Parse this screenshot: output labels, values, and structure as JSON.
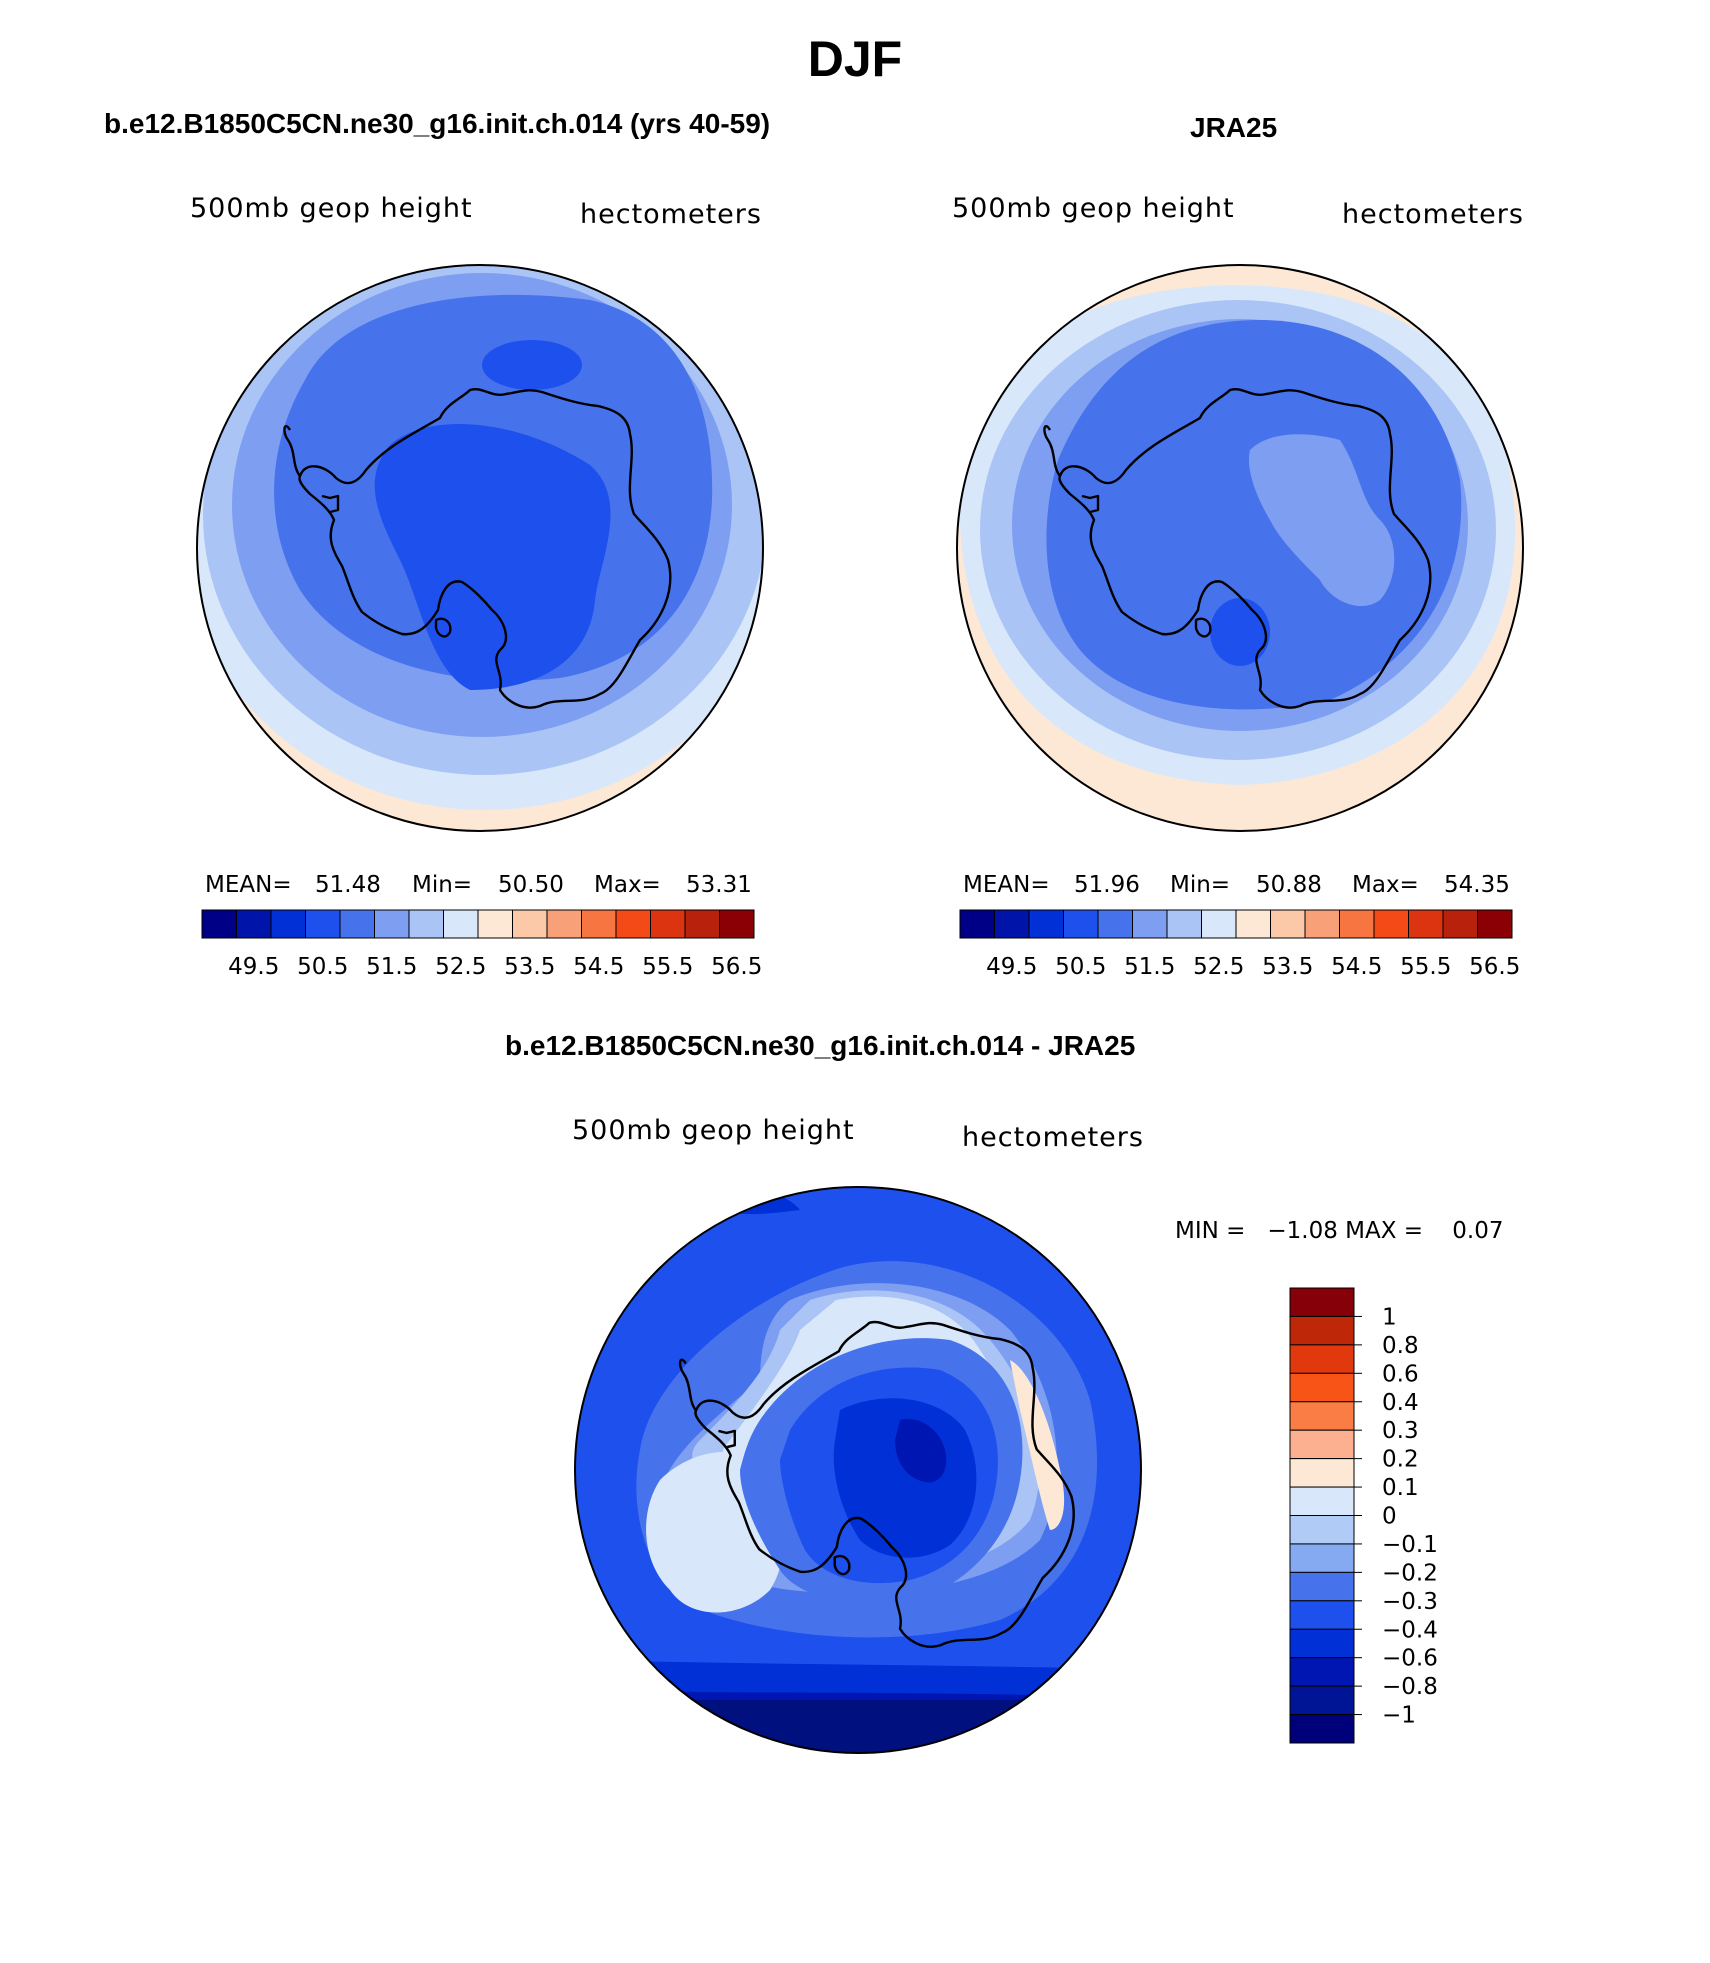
{
  "title": "DJF",
  "panels": [
    {
      "id": "model",
      "title": "b.e12.B1850C5CN.ne30_g16.init.ch.014 (yrs 40-59)",
      "left_label": "500mb geop height",
      "right_label": "hectometers",
      "stats": {
        "mean_label": "MEAN=",
        "mean": "51.48",
        "min_label": "Min=",
        "min": "50.50",
        "max_label": "Max=",
        "max": "53.31"
      }
    },
    {
      "id": "obs",
      "title": "JRA25",
      "left_label": "500mb geop height",
      "right_label": "hectometers",
      "stats": {
        "mean_label": "MEAN=",
        "mean": "51.96",
        "min_label": "Min=",
        "min": "50.88",
        "max_label": "Max=",
        "max": "54.35"
      }
    },
    {
      "id": "diff",
      "title": "b.e12.B1850C5CN.ne30_g16.init.ch.014 - JRA25",
      "left_label": "500mb geop height",
      "right_label": "hectometers",
      "minmax_text": "MIN =   −1.08 MAX =    0.07"
    }
  ],
  "colorbar_top": {
    "colors": [
      "#000086",
      "#0014aa",
      "#0030d6",
      "#1e50ee",
      "#4672ec",
      "#7e9ef2",
      "#aac4f6",
      "#d8e8fa",
      "#fde8d6",
      "#fbc8a8",
      "#f8a077",
      "#f67540",
      "#f44a18",
      "#dc3410",
      "#b8220c",
      "#8a0004"
    ],
    "labels": [
      "49.5",
      "50.5",
      "51.5",
      "52.5",
      "53.5",
      "54.5",
      "55.5",
      "56.5"
    ]
  },
  "colorbar_diff": {
    "colors": [
      "#86000a",
      "#be2808",
      "#e2380e",
      "#f85418",
      "#fa7d45",
      "#fcb090",
      "#fde8d6",
      "#d8e8fa",
      "#b0ccf6",
      "#86aaf2",
      "#4672ec",
      "#1e50ee",
      "#0030d6",
      "#0016b2",
      "#001496",
      "#00007a"
    ],
    "labels": [
      "1",
      "0.8",
      "0.6",
      "0.4",
      "0.3",
      "0.2",
      "0.1",
      "0",
      "−0.1",
      "−0.2",
      "−0.3",
      "−0.4",
      "−0.6",
      "−0.8",
      "−1"
    ]
  },
  "map_colors": {
    "m_peach": "#fde8d6",
    "m_pale": "#d8e8fa",
    "m_light": "#aac4f6",
    "m_mid": "#7e9ef2",
    "m_blue": "#4672ec",
    "m_deep": "#1e50ee",
    "d_deepest": "#00107e",
    "d_navy": "#0016b2",
    "d_royal": "#0030d6"
  }
}
